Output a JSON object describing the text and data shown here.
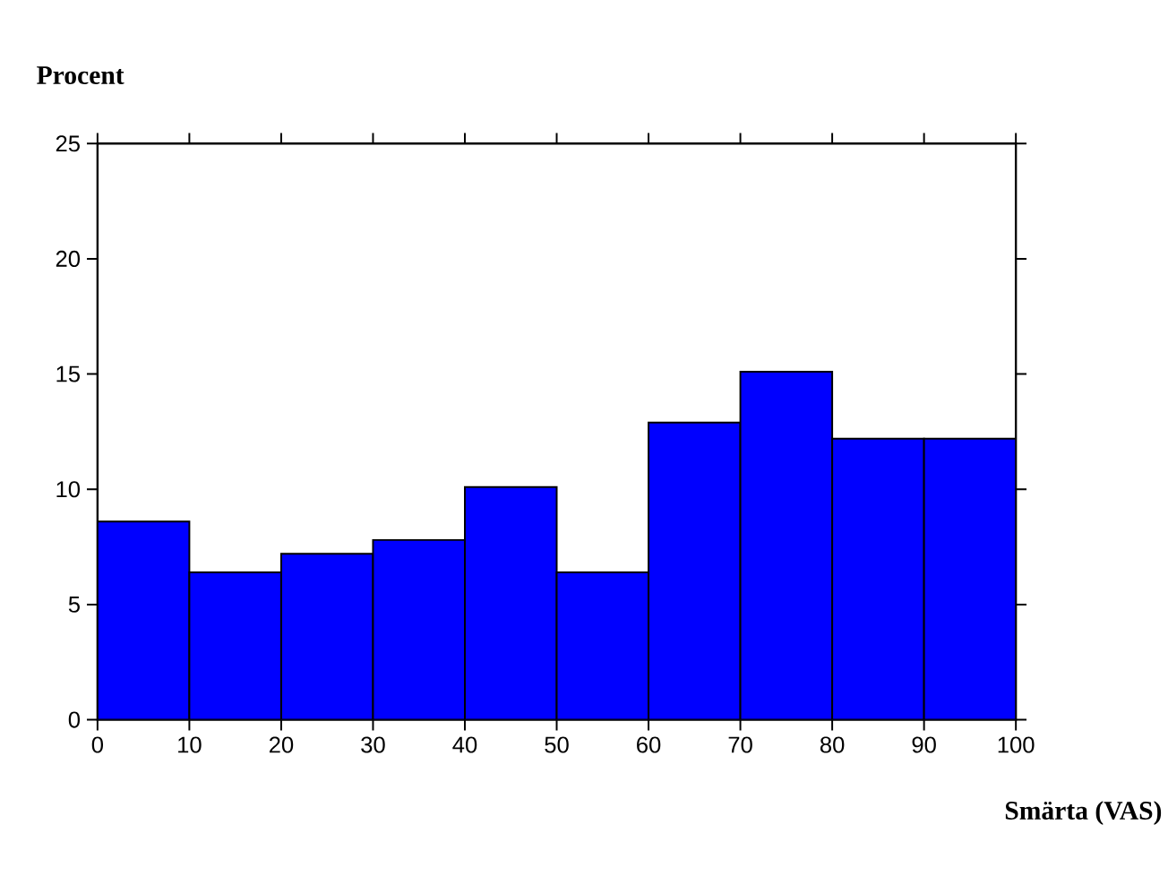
{
  "chart_data": {
    "type": "histogram",
    "ylabel": "Procent",
    "xlabel": "Smärta (VAS)",
    "bins": [
      0,
      10,
      20,
      30,
      40,
      50,
      60,
      70,
      80,
      90,
      100
    ],
    "values": [
      8.6,
      6.4,
      7.2,
      7.8,
      10.1,
      6.4,
      12.9,
      15.1,
      12.2,
      12.2
    ],
    "color": "#0000ff",
    "xlim": [
      0,
      100
    ],
    "xticks": [
      0,
      10,
      20,
      30,
      40,
      50,
      60,
      70,
      80,
      90,
      100
    ],
    "ylim": [
      0,
      25
    ],
    "yticks": [
      0,
      5,
      10,
      15,
      20,
      25
    ],
    "grid": false
  }
}
